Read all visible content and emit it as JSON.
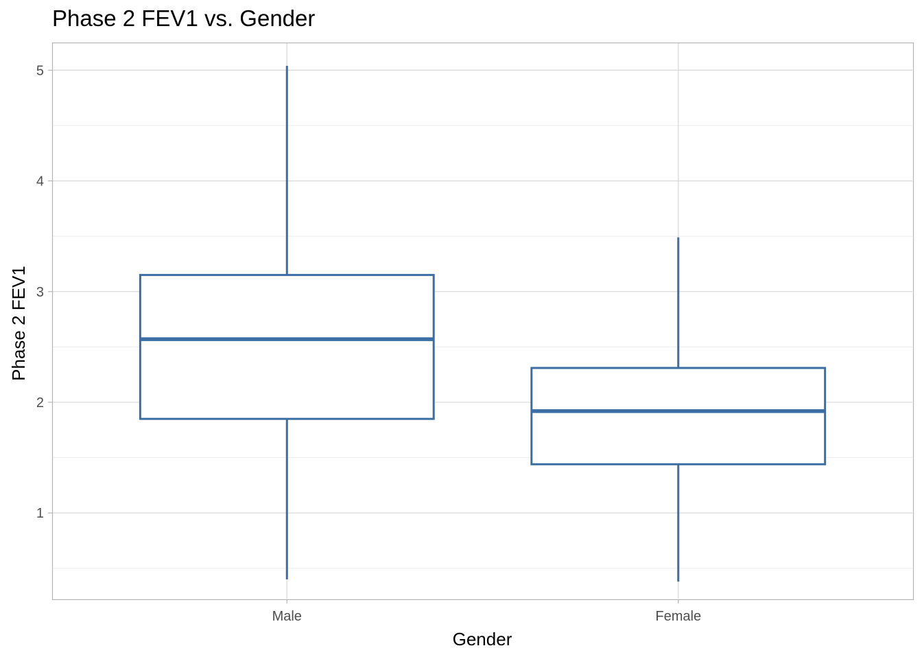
{
  "chart_data": {
    "type": "boxplot",
    "title": "Phase 2 FEV1 vs. Gender",
    "xlabel": "Gender",
    "ylabel": "Phase 2 FEV1",
    "categories": [
      "Male",
      "Female"
    ],
    "ylim": [
      0.22,
      5.25
    ],
    "yticks": [
      1,
      2,
      3,
      4,
      5
    ],
    "grid": true,
    "color": "#3b6ea5",
    "boxes": [
      {
        "category": "Male",
        "whisker_low": 0.4,
        "q1": 1.85,
        "median": 2.57,
        "q3": 3.15,
        "whisker_high": 5.04
      },
      {
        "category": "Female",
        "whisker_low": 0.38,
        "q1": 1.44,
        "median": 1.92,
        "q3": 2.31,
        "whisker_high": 3.49
      }
    ]
  }
}
